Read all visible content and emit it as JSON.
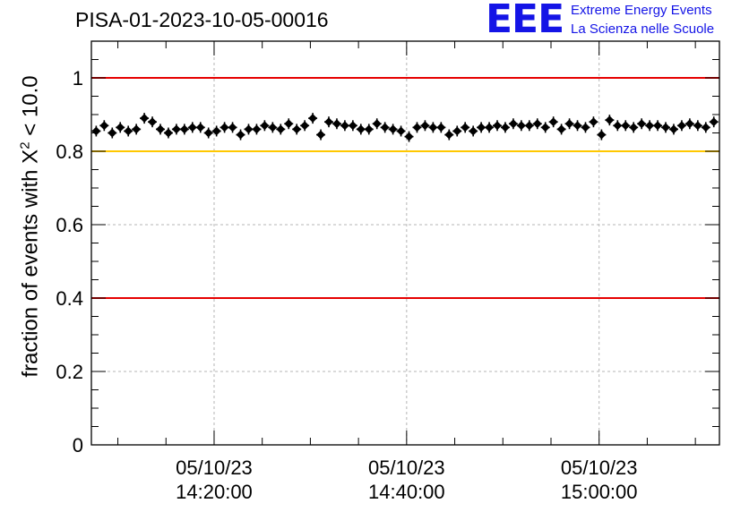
{
  "header": {
    "title": "PISA-01-2023-10-05-00016",
    "logo_mark": "EEE",
    "logo_line1": "Extreme Energy Events",
    "logo_line2": "La Scienza nelle Scuole"
  },
  "chart_data": {
    "type": "scatter",
    "title": "PISA-01-2023-10-05-00016",
    "ylabel": "fraction of events with χ² < 10.0",
    "ylabel_main": "fraction of events with X",
    "ylabel_sup": "2",
    "ylabel_tail": " < 10.0",
    "xlabel": "",
    "x_unit": "minutes",
    "xlim": [
      "14:07:15",
      "15:12:30"
    ],
    "ylim": [
      0,
      1.1
    ],
    "grid": true,
    "y_ticks": [
      "0",
      "0.2",
      "0.4",
      "0.6",
      "0.8",
      "1"
    ],
    "y_tick_values": [
      0,
      0.2,
      0.4,
      0.6,
      0.8,
      1.0
    ],
    "x_ticks": [
      {
        "time": "14:20:00",
        "date": "05/10/23"
      },
      {
        "time": "14:40:00",
        "date": "05/10/23"
      },
      {
        "time": "15:00:00",
        "date": "05/10/23"
      }
    ],
    "reference_lines": [
      {
        "y": 1.0,
        "color": "#e60000"
      },
      {
        "y": 0.8,
        "color": "#ffc800"
      },
      {
        "y": 0.4,
        "color": "#e60000"
      }
    ],
    "series": [
      {
        "color": "#000000",
        "x": [
          "14:07:45",
          "14:08:35",
          "14:09:25",
          "14:10:15",
          "14:11:05",
          "14:11:55",
          "14:12:45",
          "14:13:35",
          "14:14:25",
          "14:15:15",
          "14:16:05",
          "14:16:55",
          "14:17:45",
          "14:18:35",
          "14:19:25",
          "14:20:15",
          "14:21:05",
          "14:21:55",
          "14:22:45",
          "14:23:35",
          "14:24:25",
          "14:25:15",
          "14:26:05",
          "14:26:55",
          "14:27:45",
          "14:28:35",
          "14:29:25",
          "14:30:15",
          "14:31:05",
          "14:31:55",
          "14:32:45",
          "14:33:35",
          "14:34:25",
          "14:35:15",
          "14:36:05",
          "14:36:55",
          "14:37:45",
          "14:38:35",
          "14:39:25",
          "14:40:15",
          "14:41:05",
          "14:41:55",
          "14:42:45",
          "14:43:35",
          "14:44:25",
          "14:45:15",
          "14:46:05",
          "14:46:55",
          "14:47:45",
          "14:48:35",
          "14:49:25",
          "14:50:15",
          "14:51:05",
          "14:51:55",
          "14:52:45",
          "14:53:35",
          "14:54:25",
          "14:55:15",
          "14:56:05",
          "14:56:55",
          "14:57:45",
          "14:58:35",
          "14:59:25",
          "15:00:15",
          "15:01:05",
          "15:01:55",
          "15:02:45",
          "15:03:35",
          "15:04:25",
          "15:05:15",
          "15:06:05",
          "15:06:55",
          "15:07:45",
          "15:08:35",
          "15:09:25",
          "15:10:15",
          "15:11:05",
          "15:11:55"
        ],
        "y": [
          0.855,
          0.87,
          0.85,
          0.865,
          0.855,
          0.86,
          0.89,
          0.88,
          0.86,
          0.85,
          0.86,
          0.86,
          0.865,
          0.865,
          0.85,
          0.855,
          0.865,
          0.865,
          0.845,
          0.86,
          0.86,
          0.87,
          0.865,
          0.86,
          0.875,
          0.86,
          0.87,
          0.89,
          0.845,
          0.88,
          0.875,
          0.87,
          0.87,
          0.86,
          0.86,
          0.875,
          0.865,
          0.86,
          0.855,
          0.84,
          0.865,
          0.87,
          0.865,
          0.865,
          0.845,
          0.855,
          0.865,
          0.855,
          0.865,
          0.865,
          0.87,
          0.865,
          0.875,
          0.87,
          0.87,
          0.875,
          0.865,
          0.88,
          0.86,
          0.875,
          0.87,
          0.865,
          0.88,
          0.845,
          0.885,
          0.87,
          0.87,
          0.865,
          0.875,
          0.87,
          0.87,
          0.865,
          0.86,
          0.87,
          0.875,
          0.87,
          0.865,
          0.88
        ]
      }
    ]
  }
}
